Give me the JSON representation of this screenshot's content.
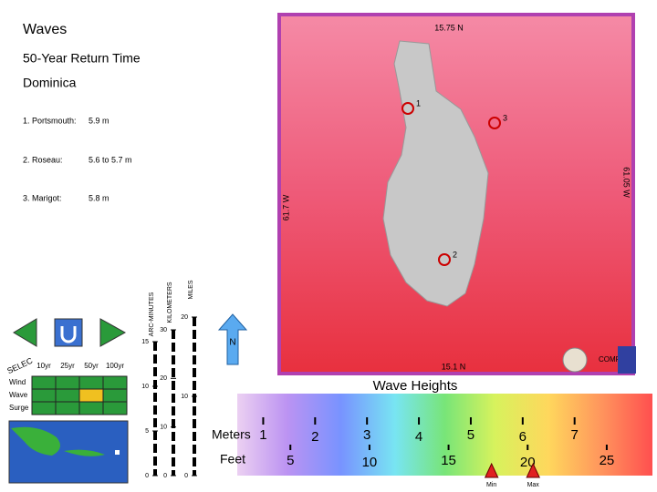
{
  "header": {
    "title": "Waves",
    "subtitle": "50-Year Return Time",
    "location": "Dominica"
  },
  "sites": [
    {
      "label": "1. Portsmouth:",
      "value": "5.9 m"
    },
    {
      "label": "2. Roseau:",
      "value": "5.6 to 5.7 m"
    },
    {
      "label": "3. Marigot:",
      "value": "5.8 m"
    }
  ],
  "map": {
    "north_label": "15.75 N",
    "south_label": "15.1 N",
    "east_label": "61.05 W",
    "west_label": "61.7 W",
    "markers": [
      "1",
      "2",
      "3"
    ],
    "compass": "N",
    "logo_text": "COMP"
  },
  "scale_bars": [
    {
      "name": "ARC-MINUTES",
      "range": [
        0,
        15
      ],
      "ticks": [
        15,
        10,
        5,
        0
      ]
    },
    {
      "name": "KILOMETERS",
      "range": [
        0,
        30
      ],
      "ticks": [
        30,
        20,
        10,
        0
      ]
    },
    {
      "name": "MILES",
      "range": [
        0,
        20
      ],
      "ticks": [
        20,
        10,
        0
      ]
    }
  ],
  "controls": {
    "select": "SELEC",
    "periods": [
      "10yr",
      "25yr",
      "50yr",
      "100yr"
    ],
    "rows": [
      "Wind",
      "Wave",
      "Surge"
    ]
  },
  "legend": {
    "title": "Wave Heights",
    "meters_label": "Meters",
    "feet_label": "Feet",
    "meters_range": [
      0.5,
      8.5
    ],
    "feet_range": [
      1.64,
      27.89
    ],
    "meters_ticks": [
      1,
      2,
      3,
      4,
      5,
      6,
      7
    ],
    "feet_ticks": [
      5,
      10,
      15,
      20,
      25
    ],
    "min_label": "Min",
    "max_label": "Max",
    "min_value": 5.4,
    "max_value": 6.2
  }
}
